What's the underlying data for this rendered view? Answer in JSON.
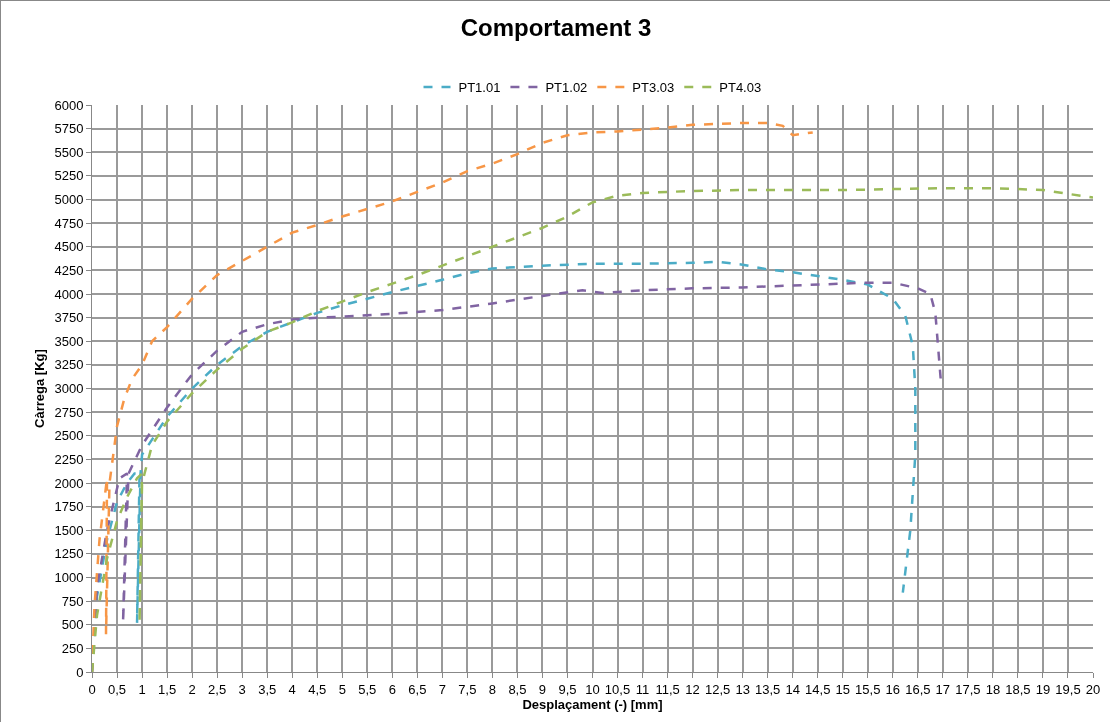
{
  "chart_data": {
    "type": "line",
    "title": "Comportament 3",
    "xlabel": "Desplaçament (-) [mm]",
    "ylabel": "Càrrega [Kg]",
    "line_style": "dashed",
    "marker": "none",
    "grid": true,
    "legend": "top",
    "xlim": [
      0,
      20
    ],
    "ylim": [
      0,
      6000
    ],
    "xticks": [
      0,
      {
        "value": 0.5,
        "label": "0,5"
      },
      1,
      {
        "value": 1.5,
        "label": "1,5"
      },
      2,
      {
        "value": 2.5,
        "label": "2,5"
      },
      3,
      {
        "value": 3.5,
        "label": "3,5"
      },
      4,
      {
        "value": 4.5,
        "label": "4,5"
      },
      5,
      {
        "value": 5.5,
        "label": "5,5"
      },
      6,
      {
        "value": 6.5,
        "label": "6,5"
      },
      7,
      {
        "value": 7.5,
        "label": "7,5"
      },
      8,
      {
        "value": 8.5,
        "label": "8,5"
      },
      9,
      {
        "value": 9.5,
        "label": "9,5"
      },
      10,
      {
        "value": 10.5,
        "label": "10,5"
      },
      11,
      {
        "value": 11.5,
        "label": "11,5"
      },
      12,
      {
        "value": 12.5,
        "label": "12,5"
      },
      13,
      {
        "value": 13.5,
        "label": "13,5"
      },
      14,
      {
        "value": 14.5,
        "label": "14,5"
      },
      15,
      {
        "value": 15.5,
        "label": "15,5"
      },
      16,
      {
        "value": 16.5,
        "label": "16,5"
      },
      17,
      {
        "value": 17.5,
        "label": "17,5"
      },
      18,
      {
        "value": 18.5,
        "label": "18,5"
      },
      19,
      {
        "value": 19.5,
        "label": "19,5"
      },
      20
    ],
    "yticks": [
      0,
      250,
      500,
      750,
      1000,
      1250,
      1500,
      1750,
      2000,
      2250,
      2500,
      2750,
      3000,
      3250,
      3500,
      3750,
      4000,
      4250,
      4500,
      4750,
      5000,
      5250,
      5500,
      5750,
      6000
    ],
    "series": [
      {
        "name": "PT1.01",
        "color": "#4bacc6",
        "x": [
          0,
          0.1,
          0.3,
          0.5,
          0.7,
          0.85,
          0.95,
          0.9,
          0.97,
          1,
          1.5,
          2,
          2.5,
          3,
          3.5,
          4,
          4.5,
          5,
          5.5,
          6,
          7,
          7.5,
          8,
          9,
          10,
          11,
          12,
          12.5,
          13,
          13.5,
          14,
          14.5,
          15,
          15.5,
          16,
          16.25,
          16.4,
          16.45,
          16.45,
          16.35,
          16.2
        ],
        "values": [
          0,
          800,
          1400,
          1800,
          2000,
          2100,
          2100,
          520,
          2100,
          2300,
          2700,
          3000,
          3250,
          3450,
          3600,
          3700,
          3800,
          3880,
          3950,
          4020,
          4150,
          4220,
          4270,
          4300,
          4320,
          4320,
          4330,
          4340,
          4310,
          4260,
          4230,
          4190,
          4150,
          4100,
          3950,
          3770,
          3450,
          3000,
          2300,
          1500,
          840
        ]
      },
      {
        "name": "PT1.02",
        "color": "#8064a2",
        "x": [
          0,
          0.1,
          0.3,
          0.55,
          0.7,
          0.62,
          0.73,
          1,
          1.5,
          2,
          2.5,
          3,
          3.5,
          4,
          4.5,
          5,
          6,
          7,
          8,
          9,
          9.8,
          10.2,
          11,
          12,
          13,
          14,
          15,
          15.5,
          16,
          16.5,
          16.75,
          16.85,
          16.96
        ],
        "values": [
          0,
          900,
          1500,
          2050,
          2100,
          520,
          2100,
          2400,
          2800,
          3150,
          3400,
          3600,
          3680,
          3730,
          3750,
          3760,
          3790,
          3830,
          3900,
          3980,
          4040,
          4010,
          4040,
          4060,
          4070,
          4090,
          4110,
          4120,
          4120,
          4060,
          4000,
          3800,
          3080
        ]
      },
      {
        "name": "PT3.03",
        "color": "#f79646",
        "x": [
          0,
          0.05,
          0.15,
          0.3,
          0.28,
          0.35,
          0.5,
          0.65,
          0.8,
          1,
          1.2,
          1.5,
          2,
          2.5,
          3,
          3.5,
          4,
          4.5,
          5,
          5.5,
          6,
          6.5,
          7,
          7.5,
          8,
          8.5,
          9,
          9.5,
          10,
          10.5,
          11,
          11.5,
          12,
          12.5,
          13,
          13.5,
          13.8,
          14,
          14.4
        ],
        "values": [
          0,
          700,
          1400,
          2050,
          400,
          2000,
          2600,
          2900,
          3100,
          3250,
          3500,
          3650,
          3950,
          4200,
          4350,
          4500,
          4650,
          4730,
          4820,
          4900,
          4980,
          5080,
          5180,
          5300,
          5380,
          5480,
          5600,
          5680,
          5710,
          5720,
          5740,
          5760,
          5790,
          5800,
          5810,
          5810,
          5780,
          5680,
          5710
        ]
      },
      {
        "name": "PT4.03",
        "color": "#9bbb59",
        "x": [
          0,
          0.1,
          0.3,
          0.5,
          0.7,
          0.9,
          1,
          0.95,
          1,
          1.2,
          1.5,
          2,
          2.5,
          3,
          3.5,
          4,
          4.5,
          5,
          5.5,
          6,
          6.5,
          7,
          7.5,
          8,
          8.5,
          9,
          9.5,
          10,
          10.5,
          11,
          12,
          13,
          14,
          15,
          16,
          17,
          18,
          18.5,
          19,
          19.5,
          20
        ],
        "values": [
          0,
          600,
          1200,
          1600,
          1850,
          2050,
          2100,
          520,
          2000,
          2400,
          2650,
          2950,
          3200,
          3420,
          3600,
          3700,
          3820,
          3920,
          4020,
          4110,
          4200,
          4300,
          4400,
          4500,
          4600,
          4700,
          4820,
          4970,
          5040,
          5070,
          5090,
          5100,
          5100,
          5100,
          5110,
          5120,
          5120,
          5110,
          5100,
          5060,
          5020
        ]
      }
    ]
  }
}
